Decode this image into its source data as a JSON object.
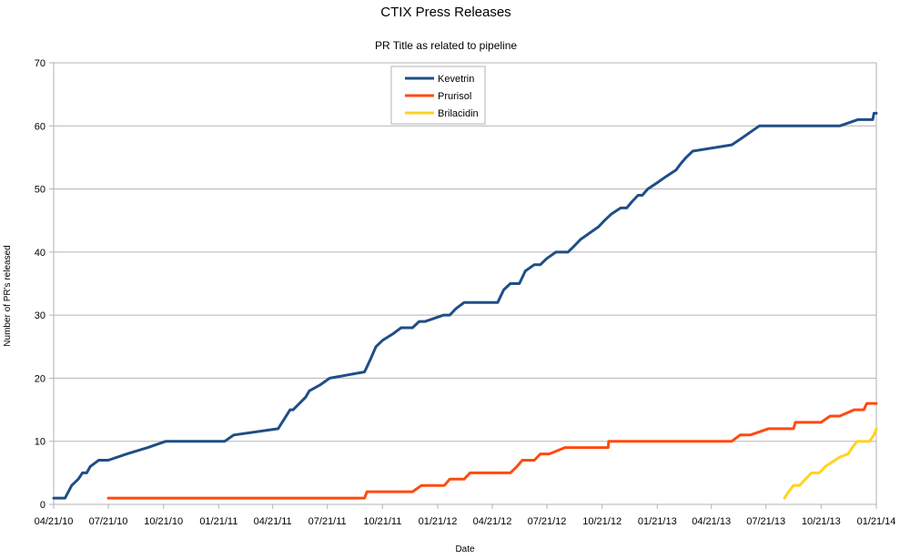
{
  "chart_data": {
    "type": "line",
    "title": "CTIX Press Releases",
    "subtitle": "PR Title as related to pipeline",
    "xlabel": "Date",
    "ylabel": "Number of PR's released",
    "xlim": [
      "04/21/10",
      "01/21/14"
    ],
    "ylim": [
      0,
      70
    ],
    "x_tick_labels": [
      "04/21/10",
      "07/21/10",
      "10/21/10",
      "01/21/11",
      "04/21/11",
      "07/21/11",
      "10/21/11",
      "01/21/12",
      "04/21/12",
      "07/21/12",
      "10/21/12",
      "01/21/13",
      "04/21/13",
      "07/21/13",
      "10/21/13",
      "01/21/14"
    ],
    "y_tick_labels": [
      "0",
      "10",
      "20",
      "30",
      "40",
      "50",
      "60",
      "70"
    ],
    "grid": "horizontal",
    "legend_position": "top-center",
    "series": [
      {
        "name": "Kevetrin",
        "color": "#1f4e86",
        "points": [
          [
            "04/21/10",
            1
          ],
          [
            "05/10/10",
            1
          ],
          [
            "05/21/10",
            3
          ],
          [
            "06/01/10",
            4
          ],
          [
            "06/08/10",
            5
          ],
          [
            "06/15/10",
            5
          ],
          [
            "06/21/10",
            6
          ],
          [
            "07/05/10",
            7
          ],
          [
            "07/21/10",
            7
          ],
          [
            "08/21/10",
            8
          ],
          [
            "09/25/10",
            9
          ],
          [
            "10/25/10",
            10
          ],
          [
            "01/31/11",
            10
          ],
          [
            "02/15/11",
            11
          ],
          [
            "04/30/11",
            12
          ],
          [
            "05/20/11",
            15
          ],
          [
            "05/25/11",
            15
          ],
          [
            "06/15/11",
            17
          ],
          [
            "06/21/11",
            18
          ],
          [
            "07/10/11",
            19
          ],
          [
            "07/25/11",
            20
          ],
          [
            "09/21/11",
            21
          ],
          [
            "10/01/11",
            23
          ],
          [
            "10/10/11",
            25
          ],
          [
            "10/21/11",
            26
          ],
          [
            "11/07/11",
            27
          ],
          [
            "11/21/11",
            28
          ],
          [
            "12/10/11",
            28
          ],
          [
            "12/21/11",
            29
          ],
          [
            "12/31/11",
            29
          ],
          [
            "01/31/12",
            30
          ],
          [
            "02/10/12",
            30
          ],
          [
            "02/20/12",
            31
          ],
          [
            "03/05/12",
            32
          ],
          [
            "03/25/12",
            32
          ],
          [
            "04/30/12",
            32
          ],
          [
            "05/10/12",
            34
          ],
          [
            "05/21/12",
            35
          ],
          [
            "06/05/12",
            35
          ],
          [
            "06/15/12",
            37
          ],
          [
            "06/30/12",
            38
          ],
          [
            "07/10/12",
            38
          ],
          [
            "07/21/12",
            39
          ],
          [
            "08/05/12",
            40
          ],
          [
            "08/25/12",
            40
          ],
          [
            "09/05/12",
            41
          ],
          [
            "09/15/12",
            42
          ],
          [
            "10/15/12",
            44
          ],
          [
            "10/25/12",
            45
          ],
          [
            "11/05/12",
            46
          ],
          [
            "11/21/12",
            47
          ],
          [
            "12/01/12",
            47
          ],
          [
            "12/10/12",
            48
          ],
          [
            "12/20/12",
            49
          ],
          [
            "12/27/12",
            49
          ],
          [
            "01/05/13",
            50
          ],
          [
            "01/21/13",
            51
          ],
          [
            "02/05/13",
            52
          ],
          [
            "02/21/13",
            53
          ],
          [
            "03/01/13",
            54
          ],
          [
            "03/10/13",
            55
          ],
          [
            "03/21/13",
            56
          ],
          [
            "05/25/13",
            57
          ],
          [
            "06/10/13",
            58
          ],
          [
            "06/25/13",
            59
          ],
          [
            "07/10/13",
            60
          ],
          [
            "11/21/13",
            60
          ],
          [
            "12/21/13",
            61
          ],
          [
            "01/15/14",
            61
          ],
          [
            "01/17/14",
            62
          ],
          [
            "01/21/14",
            62
          ]
        ]
      },
      {
        "name": "Prurisol",
        "color": "#ff4a0f",
        "points": [
          [
            "07/21/10",
            1
          ],
          [
            "09/21/11",
            1
          ],
          [
            "09/25/11",
            2
          ],
          [
            "12/10/11",
            2
          ],
          [
            "12/25/11",
            3
          ],
          [
            "02/01/12",
            3
          ],
          [
            "02/10/12",
            4
          ],
          [
            "03/05/12",
            4
          ],
          [
            "03/15/12",
            5
          ],
          [
            "05/21/12",
            5
          ],
          [
            "06/01/12",
            6
          ],
          [
            "06/10/12",
            7
          ],
          [
            "06/30/12",
            7
          ],
          [
            "07/10/12",
            8
          ],
          [
            "07/25/12",
            8
          ],
          [
            "08/20/12",
            9
          ],
          [
            "10/31/12",
            9
          ],
          [
            "11/01/12",
            10
          ],
          [
            "05/25/13",
            10
          ],
          [
            "06/08/13",
            11
          ],
          [
            "06/25/13",
            11
          ],
          [
            "07/25/13",
            12
          ],
          [
            "09/05/13",
            12
          ],
          [
            "09/08/13",
            13
          ],
          [
            "10/21/13",
            13
          ],
          [
            "11/05/13",
            14
          ],
          [
            "11/21/13",
            14
          ],
          [
            "12/15/13",
            15
          ],
          [
            "12/31/13",
            15
          ],
          [
            "01/05/14",
            16
          ],
          [
            "01/21/14",
            16
          ]
        ]
      },
      {
        "name": "Brilacidin",
        "color": "#ffd320",
        "points": [
          [
            "08/21/13",
            1
          ],
          [
            "08/28/13",
            2
          ],
          [
            "09/05/13",
            3
          ],
          [
            "09/15/13",
            3
          ],
          [
            "09/25/13",
            4
          ],
          [
            "10/05/13",
            5
          ],
          [
            "10/18/13",
            5
          ],
          [
            "10/28/13",
            6
          ],
          [
            "11/05/13",
            6.5
          ],
          [
            "11/21/13",
            7.5
          ],
          [
            "12/05/13",
            8
          ],
          [
            "12/12/13",
            9
          ],
          [
            "12/20/13",
            10
          ],
          [
            "01/10/14",
            10
          ],
          [
            "01/17/14",
            11
          ],
          [
            "01/21/14",
            12
          ]
        ]
      }
    ]
  }
}
